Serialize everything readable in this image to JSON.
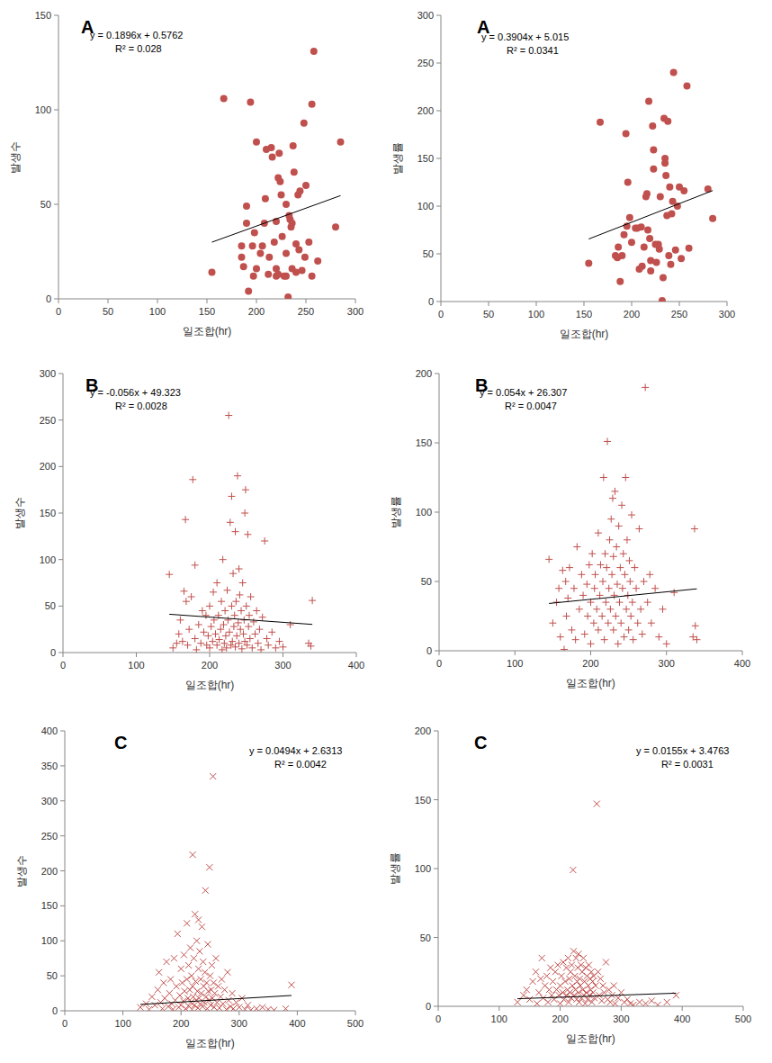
{
  "chart_data": [
    {
      "type": "scatter",
      "title": "A",
      "x_label": "일조합(hr)",
      "y_label": "발생수",
      "color": "#c0504d",
      "marker": "circle",
      "xlim": [
        0,
        300
      ],
      "xticks": [
        0,
        50,
        100,
        150,
        200,
        250,
        300
      ],
      "ylim": [
        0,
        150
      ],
      "yticks": [
        0,
        50,
        100,
        150
      ],
      "trendline": {
        "slope": 0.1896,
        "intercept": 0.5762,
        "equation": "y = 0.1896x + 0.5762",
        "r_squared": "R² = 0.028"
      },
      "x": [
        155,
        167,
        185,
        185,
        187,
        190,
        190,
        192,
        194,
        196,
        197,
        198,
        200,
        200,
        204,
        206,
        208,
        209,
        210,
        212,
        213,
        215,
        216,
        218,
        220,
        220,
        220,
        222,
        222,
        223,
        224,
        225,
        226,
        228,
        230,
        230,
        230,
        232,
        233,
        234,
        235,
        236,
        236,
        237,
        238,
        240,
        240,
        242,
        243,
        244,
        246,
        248,
        249,
        250,
        253,
        256,
        256,
        258,
        262,
        280,
        285
      ],
      "values": [
        14,
        106,
        28,
        22,
        17,
        49,
        40,
        4,
        104,
        28,
        12,
        35,
        16,
        83,
        24,
        28,
        40,
        53,
        79,
        13,
        22,
        80,
        75,
        30,
        41,
        16,
        12,
        64,
        13,
        77,
        62,
        55,
        33,
        12,
        12,
        24,
        50,
        1,
        44,
        42,
        38,
        40,
        16,
        81,
        67,
        29,
        14,
        55,
        26,
        57,
        15,
        93,
        22,
        60,
        30,
        103,
        12,
        131,
        20,
        38,
        83
      ]
    },
    {
      "type": "scatter",
      "title": "A",
      "x_label": "일조합(hr)",
      "y_label": "발생률",
      "color": "#c0504d",
      "marker": "circle",
      "xlim": [
        0,
        300
      ],
      "xticks": [
        0,
        50,
        100,
        150,
        200,
        250,
        300
      ],
      "ylim": [
        0,
        300
      ],
      "yticks": [
        0,
        50,
        100,
        150,
        200,
        250,
        300
      ],
      "trendline": {
        "slope": 0.3904,
        "intercept": 5.015,
        "equation": "y = 0.3904x + 5.015",
        "r_squared": "R² = 0.0341"
      },
      "x": [
        155,
        167,
        183,
        185,
        186,
        188,
        190,
        192,
        194,
        195,
        196,
        198,
        200,
        204,
        206,
        208,
        210,
        211,
        213,
        215,
        216,
        217,
        218,
        219,
        220,
        220,
        222,
        223,
        223,
        225,
        226,
        228,
        229,
        230,
        232,
        233,
        234,
        235,
        235,
        236,
        237,
        238,
        239,
        240,
        241,
        242,
        243,
        244,
        246,
        248,
        250,
        252,
        255,
        258,
        260,
        280,
        285
      ],
      "values": [
        40,
        188,
        48,
        46,
        57,
        21,
        48,
        70,
        176,
        79,
        125,
        88,
        62,
        77,
        77,
        34,
        78,
        37,
        57,
        110,
        113,
        75,
        210,
        66,
        32,
        43,
        184,
        139,
        159,
        60,
        41,
        60,
        55,
        110,
        1,
        25,
        192,
        150,
        145,
        132,
        90,
        189,
        48,
        120,
        39,
        92,
        105,
        240,
        54,
        100,
        120,
        45,
        116,
        226,
        56,
        118,
        87
      ]
    },
    {
      "type": "scatter",
      "title": "B",
      "x_label": "일조합(hr)",
      "y_label": "발생수",
      "color": "#c0504d",
      "marker": "plus",
      "xlim": [
        0,
        400
      ],
      "xticks": [
        0,
        100,
        200,
        300,
        400
      ],
      "ylim": [
        0,
        300
      ],
      "yticks": [
        0,
        50,
        100,
        150,
        200,
        250,
        300
      ],
      "trendline": {
        "slope": -0.056,
        "intercept": 49.323,
        "equation": "y = -0.056x + 49.323",
        "r_squared": "R² = 0.0028"
      },
      "x": [
        145,
        150,
        155,
        158,
        160,
        163,
        165,
        167,
        168,
        170,
        172,
        175,
        177,
        180,
        180,
        182,
        185,
        188,
        190,
        192,
        195,
        196,
        198,
        200,
        200,
        202,
        204,
        205,
        206,
        208,
        210,
        210,
        212,
        213,
        215,
        216,
        217,
        218,
        219,
        220,
        221,
        222,
        223,
        224,
        225,
        226,
        227,
        228,
        229,
        230,
        230,
        231,
        232,
        233,
        234,
        235,
        235,
        236,
        237,
        238,
        239,
        240,
        240,
        241,
        242,
        243,
        244,
        245,
        246,
        247,
        248,
        248,
        249,
        250,
        251,
        252,
        253,
        254,
        255,
        256,
        258,
        260,
        262,
        264,
        266,
        268,
        270,
        272,
        275,
        278,
        280,
        285,
        290,
        295,
        300,
        310,
        335,
        338,
        340
      ],
      "values": [
        84,
        5,
        10,
        20,
        35,
        12,
        66,
        143,
        55,
        8,
        25,
        60,
        186,
        94,
        15,
        3,
        30,
        10,
        45,
        22,
        40,
        8,
        18,
        50,
        5,
        28,
        12,
        65,
        35,
        20,
        8,
        75,
        40,
        14,
        25,
        55,
        3,
        100,
        30,
        10,
        45,
        18,
        5,
        67,
        35,
        255,
        22,
        140,
        8,
        168,
        50,
        12,
        85,
        28,
        40,
        130,
        6,
        55,
        18,
        190,
        32,
        90,
        10,
        62,
        25,
        45,
        4,
        75,
        20,
        35,
        150,
        12,
        175,
        50,
        8,
        127,
        28,
        40,
        15,
        60,
        5,
        33,
        20,
        45,
        10,
        25,
        3,
        38,
        120,
        15,
        8,
        22,
        5,
        12,
        6,
        30,
        10,
        7,
        56
      ]
    },
    {
      "type": "scatter",
      "title": "B",
      "x_label": "일조합(hr)",
      "y_label": "발생률",
      "color": "#c0504d",
      "marker": "plus",
      "xlim": [
        0,
        400
      ],
      "xticks": [
        0,
        100,
        200,
        300,
        400
      ],
      "ylim": [
        0,
        200
      ],
      "yticks": [
        0,
        50,
        100,
        150,
        200
      ],
      "trendline": {
        "slope": 0.054,
        "intercept": 26.307,
        "equation": "y = 0.054x + 26.307",
        "r_squared": "R² = 0.0047"
      },
      "x": [
        145,
        150,
        155,
        158,
        160,
        163,
        165,
        167,
        168,
        170,
        172,
        175,
        178,
        180,
        182,
        185,
        188,
        190,
        192,
        195,
        196,
        198,
        200,
        200,
        202,
        204,
        205,
        206,
        208,
        210,
        210,
        212,
        213,
        215,
        216,
        217,
        218,
        219,
        220,
        221,
        222,
        223,
        224,
        225,
        226,
        227,
        228,
        229,
        230,
        230,
        231,
        232,
        233,
        234,
        235,
        236,
        237,
        238,
        239,
        240,
        241,
        242,
        243,
        244,
        245,
        246,
        247,
        248,
        249,
        250,
        251,
        252,
        253,
        254,
        255,
        256,
        258,
        260,
        262,
        264,
        266,
        268,
        270,
        272,
        275,
        278,
        280,
        285,
        290,
        295,
        300,
        310,
        335,
        337,
        338,
        340
      ],
      "values": [
        66,
        20,
        35,
        45,
        10,
        58,
        1,
        50,
        25,
        38,
        60,
        15,
        45,
        8,
        75,
        30,
        55,
        40,
        12,
        48,
        25,
        62,
        35,
        5,
        70,
        20,
        45,
        55,
        30,
        85,
        15,
        40,
        62,
        25,
        50,
        125,
        8,
        70,
        35,
        60,
        151,
        20,
        45,
        80,
        30,
        95,
        55,
        110,
        15,
        68,
        40,
        115,
        25,
        75,
        48,
        5,
        90,
        35,
        60,
        20,
        105,
        45,
        70,
        10,
        55,
        125,
        30,
        80,
        40,
        15,
        65,
        50,
        25,
        98,
        35,
        8,
        60,
        45,
        20,
        88,
        30,
        12,
        50,
        190,
        35,
        55,
        20,
        45,
        10,
        30,
        5,
        42,
        10,
        88,
        18,
        8
      ]
    },
    {
      "type": "scatter",
      "title": "C",
      "x_label": "일조합(hr)",
      "y_label": "발생수",
      "color": "#c0504d",
      "marker": "cross",
      "xlim": [
        0,
        500
      ],
      "xticks": [
        0,
        100,
        200,
        300,
        400,
        500
      ],
      "ylim": [
        0,
        400
      ],
      "yticks": [
        0,
        50,
        100,
        150,
        200,
        250,
        300,
        350,
        400
      ],
      "trendline": {
        "slope": 0.0494,
        "intercept": 2.6313,
        "equation": "y = 0.0494x + 2.6313",
        "r_squared": "R² = 0.0042"
      },
      "x": [
        130,
        140,
        145,
        150,
        155,
        160,
        162,
        165,
        168,
        170,
        172,
        175,
        178,
        180,
        182,
        184,
        186,
        188,
        190,
        192,
        194,
        196,
        198,
        200,
        200,
        202,
        204,
        205,
        206,
        208,
        210,
        210,
        212,
        213,
        214,
        215,
        216,
        217,
        218,
        219,
        220,
        220,
        221,
        222,
        223,
        224,
        225,
        226,
        227,
        228,
        229,
        230,
        230,
        231,
        232,
        233,
        234,
        235,
        236,
        237,
        238,
        239,
        240,
        241,
        242,
        243,
        244,
        245,
        246,
        247,
        248,
        249,
        250,
        251,
        252,
        253,
        254,
        255,
        256,
        257,
        258,
        260,
        262,
        264,
        266,
        268,
        270,
        272,
        275,
        278,
        280,
        282,
        285,
        288,
        290,
        295,
        300,
        305,
        310,
        315,
        320,
        330,
        340,
        350,
        360,
        380,
        390
      ],
      "values": [
        5,
        10,
        2,
        20,
        8,
        30,
        55,
        12,
        3,
        40,
        18,
        70,
        6,
        25,
        45,
        10,
        2,
        75,
        15,
        35,
        110,
        5,
        22,
        60,
        8,
        40,
        14,
        80,
        28,
        3,
        125,
        45,
        18,
        65,
        6,
        30,
        90,
        12,
        50,
        2,
        223,
        35,
        20,
        75,
        8,
        138,
        42,
        15,
        100,
        28,
        4,
        60,
        130,
        18,
        85,
        10,
        45,
        25,
        120,
        6,
        70,
        35,
        12,
        55,
        172,
        20,
        40,
        3,
        95,
        28,
        15,
        205,
        50,
        8,
        30,
        65,
        18,
        335,
        40,
        5,
        25,
        75,
        12,
        35,
        4,
        20,
        45,
        10,
        30,
        2,
        55,
        15,
        6,
        25,
        3,
        12,
        5,
        18,
        2,
        8,
        1,
        3,
        5,
        2,
        1,
        3,
        37
      ]
    },
    {
      "type": "scatter",
      "title": "C",
      "x_label": "일조합(hr)",
      "y_label": "발생률",
      "color": "#c0504d",
      "marker": "cross",
      "xlim": [
        0,
        500
      ],
      "xticks": [
        0,
        100,
        200,
        300,
        400,
        500
      ],
      "ylim": [
        0,
        200
      ],
      "yticks": [
        0,
        50,
        100,
        150,
        200
      ],
      "trendline": {
        "slope": 0.0155,
        "intercept": 3.4763,
        "equation": "y = 0.0155x + 3.4763",
        "r_squared": "R² = 0.0031"
      },
      "x": [
        130,
        140,
        145,
        150,
        155,
        160,
        162,
        165,
        168,
        170,
        172,
        175,
        178,
        180,
        182,
        184,
        186,
        188,
        190,
        192,
        194,
        196,
        198,
        200,
        200,
        202,
        204,
        205,
        206,
        208,
        210,
        210,
        212,
        213,
        214,
        215,
        216,
        217,
        218,
        219,
        220,
        221,
        222,
        223,
        224,
        225,
        226,
        227,
        228,
        229,
        230,
        230,
        231,
        232,
        233,
        234,
        235,
        236,
        237,
        238,
        239,
        240,
        241,
        242,
        243,
        244,
        245,
        246,
        247,
        248,
        249,
        250,
        251,
        252,
        253,
        254,
        255,
        256,
        258,
        260,
        262,
        264,
        266,
        268,
        270,
        272,
        275,
        278,
        280,
        282,
        285,
        288,
        290,
        295,
        300,
        305,
        310,
        315,
        320,
        330,
        340,
        350,
        360,
        375,
        390
      ],
      "values": [
        3,
        8,
        12,
        5,
        18,
        25,
        2,
        10,
        20,
        35,
        6,
        15,
        22,
        3,
        12,
        28,
        8,
        18,
        5,
        25,
        12,
        30,
        8,
        15,
        2,
        22,
        10,
        32,
        5,
        18,
        28,
        8,
        12,
        35,
        3,
        20,
        10,
        25,
        6,
        30,
        15,
        99,
        40,
        8,
        22,
        12,
        35,
        5,
        18,
        28,
        10,
        38,
        3,
        20,
        15,
        30,
        6,
        25,
        12,
        35,
        8,
        18,
        2,
        28,
        10,
        22,
        5,
        15,
        30,
        8,
        20,
        12,
        25,
        3,
        18,
        10,
        22,
        6,
        15,
        147,
        25,
        8,
        20,
        4,
        15,
        10,
        32,
        5,
        12,
        3,
        8,
        15,
        2,
        6,
        10,
        3,
        5,
        2,
        1,
        3,
        2,
        4,
        1,
        3,
        8
      ]
    }
  ]
}
